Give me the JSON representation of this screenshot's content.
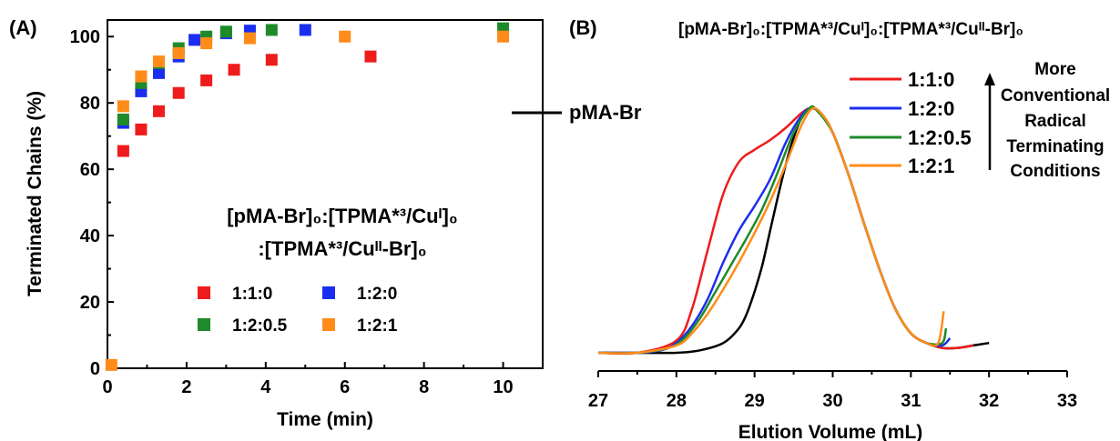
{
  "chart_data": [
    {
      "panel": "(A)",
      "type": "scatter",
      "xlabel": "Time (min)",
      "ylabel": "Terminated Chains (%)",
      "xlim": [
        0,
        11
      ],
      "ylim": [
        0,
        105
      ],
      "xticks": [
        "0",
        "2",
        "4",
        "6",
        "8",
        "10"
      ],
      "yticks": [
        "0",
        "20",
        "40",
        "60",
        "80",
        "100"
      ],
      "legend_title_line1": "[pMA-Br]₀:[TPMA*³/Cuᴵ]₀",
      "legend_title_line2": ":[TPMA*³/Cuᴵᴵ-Br]₀",
      "legend_placement": "center-right",
      "series": [
        {
          "name": "1:1:0",
          "color": "#ee1c1c",
          "x": [
            0.4,
            0.85,
            1.3,
            1.8,
            2.5,
            3.2,
            4.15,
            6.65
          ],
          "y": [
            65.5,
            72,
            77.5,
            83,
            86.8,
            90,
            93,
            94
          ]
        },
        {
          "name": "1:2:0",
          "color": "#1b2ef0",
          "x": [
            0.4,
            0.85,
            1.3,
            1.8,
            2.2,
            3.0,
            3.6,
            5.0
          ],
          "y": [
            74,
            83.5,
            89,
            94,
            99,
            101,
            101.8,
            102
          ]
        },
        {
          "name": "1:2:0.5",
          "color": "#1f8a2a",
          "x": [
            0.4,
            0.85,
            1.3,
            1.8,
            2.5,
            3.0,
            4.15,
            10.0
          ],
          "y": [
            75,
            86,
            92,
            96.5,
            100,
            101.5,
            102,
            102.5
          ]
        },
        {
          "name": "1:2:1",
          "color": "#ff8c1a",
          "x": [
            0.1,
            0.4,
            0.85,
            1.3,
            1.8,
            2.5,
            3.6,
            6.0,
            10.0
          ],
          "y": [
            1,
            79,
            88,
            92.5,
            95,
            98,
            99.5,
            100,
            100
          ]
        }
      ]
    },
    {
      "panel": "(B)",
      "type": "line",
      "title": "[pMA-Br]₀:[TPMA*³/Cuᴵ]₀:[TPMA*³/Cuᴵᴵ-Br]₀",
      "xlabel": "Elution Volume (mL)",
      "xlim": [
        27,
        33
      ],
      "xticks": [
        "27",
        "28",
        "29",
        "30",
        "31",
        "32",
        "33"
      ],
      "ylim": [
        0,
        1
      ],
      "annotation_lines": [
        "More",
        "Conventional",
        "Radical",
        "Terminating",
        "Conditions"
      ],
      "legend_placement": "top-right",
      "series": [
        {
          "name": "pMA-Br",
          "color": "#000000",
          "x": [
            27.0,
            27.5,
            28.0,
            28.3,
            28.6,
            28.8,
            28.9,
            29.0,
            29.1,
            29.2,
            29.3,
            29.4,
            29.5,
            29.6,
            29.72,
            29.85,
            30.0,
            30.2,
            30.4,
            30.6,
            30.8,
            31.0,
            31.2,
            31.4,
            31.6,
            31.8,
            32.0
          ],
          "y": [
            0.0,
            0.0,
            0.0,
            0.01,
            0.04,
            0.1,
            0.16,
            0.25,
            0.36,
            0.5,
            0.64,
            0.77,
            0.88,
            0.96,
            1.0,
            0.98,
            0.9,
            0.73,
            0.53,
            0.34,
            0.18,
            0.08,
            0.04,
            0.02,
            0.02,
            0.03,
            0.04
          ]
        },
        {
          "name": "1:1:0",
          "color": "#ee1c1c",
          "x": [
            27.0,
            27.5,
            28.0,
            28.2,
            28.4,
            28.6,
            28.8,
            29.0,
            29.2,
            29.4,
            29.6,
            29.72,
            29.85,
            30.0,
            30.2,
            30.4,
            30.6,
            30.8,
            31.0,
            31.2,
            31.4,
            31.6,
            31.8
          ],
          "y": [
            0.0,
            0.0,
            0.05,
            0.18,
            0.42,
            0.65,
            0.78,
            0.83,
            0.87,
            0.92,
            0.98,
            1.0,
            0.98,
            0.9,
            0.73,
            0.53,
            0.34,
            0.18,
            0.08,
            0.04,
            0.02,
            0.02,
            0.03
          ]
        },
        {
          "name": "1:2:0",
          "color": "#1b2ef0",
          "x": [
            27.0,
            27.5,
            27.8,
            28.0,
            28.2,
            28.4,
            28.6,
            28.8,
            29.0,
            29.2,
            29.4,
            29.6,
            29.72,
            29.85,
            30.0,
            30.2,
            30.4,
            30.6,
            30.8,
            31.0,
            31.2,
            31.4,
            31.5
          ],
          "y": [
            0.0,
            0.0,
            0.01,
            0.04,
            0.11,
            0.22,
            0.37,
            0.5,
            0.6,
            0.71,
            0.86,
            0.97,
            1.0,
            0.98,
            0.9,
            0.73,
            0.53,
            0.34,
            0.18,
            0.08,
            0.04,
            0.03,
            0.06
          ]
        },
        {
          "name": "1:2:0.5",
          "color": "#1f8a2a",
          "x": [
            27.0,
            27.5,
            27.9,
            28.1,
            28.3,
            28.5,
            28.7,
            28.9,
            29.1,
            29.3,
            29.5,
            29.7,
            29.8,
            30.0,
            30.2,
            30.4,
            30.6,
            30.8,
            31.0,
            31.2,
            31.4,
            31.45
          ],
          "y": [
            0.0,
            0.0,
            0.02,
            0.06,
            0.14,
            0.25,
            0.36,
            0.47,
            0.59,
            0.74,
            0.9,
            1.0,
            0.99,
            0.9,
            0.73,
            0.53,
            0.34,
            0.18,
            0.08,
            0.04,
            0.04,
            0.1
          ]
        },
        {
          "name": "1:2:1",
          "color": "#ff8c1a",
          "x": [
            27.0,
            27.5,
            28.0,
            28.2,
            28.4,
            28.6,
            28.8,
            29.0,
            29.2,
            29.4,
            29.6,
            29.75,
            29.9,
            30.0,
            30.2,
            30.4,
            30.6,
            30.8,
            31.0,
            31.2,
            31.35,
            31.42
          ],
          "y": [
            0.0,
            0.0,
            0.03,
            0.08,
            0.16,
            0.26,
            0.37,
            0.49,
            0.62,
            0.77,
            0.93,
            1.0,
            0.96,
            0.9,
            0.73,
            0.53,
            0.34,
            0.18,
            0.08,
            0.04,
            0.04,
            0.17
          ]
        }
      ]
    }
  ]
}
